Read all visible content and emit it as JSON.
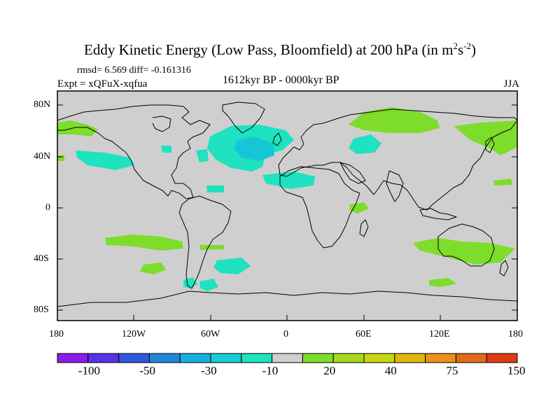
{
  "title_main": "Eddy Kinetic Energy (Low Pass, Bloomfield) at 200 hPa (in m",
  "title_sup1": "2",
  "title_mid": "s",
  "title_sup2": "-2",
  "title_end": ")",
  "stats": "rmsd= 6.569 diff= -0.161316",
  "expt": "Expt = xQFuX-xqfua",
  "period": "1612kyr BP - 0000kyr BP",
  "season": "JJA",
  "lat_labels": [
    "80N",
    "40N",
    "0",
    "40S",
    "80S"
  ],
  "lon_labels": [
    "180",
    "120W",
    "60W",
    "0",
    "60E",
    "120E",
    "180"
  ],
  "colorbar": {
    "colors": [
      "#8a1ee8",
      "#5a32e6",
      "#2f58e0",
      "#1f86dc",
      "#16aee0",
      "#17ccd8",
      "#1ee2c0",
      "#cfcfcf",
      "#7edc2a",
      "#a6d81c",
      "#c8d414",
      "#e0b610",
      "#e8921a",
      "#e06a18",
      "#e03c14"
    ],
    "labels": [
      "-100",
      "-50",
      "-30",
      "-10",
      "20",
      "40",
      "75",
      "150"
    ]
  },
  "colors": {
    "ocean": "#cfcfcf",
    "positive": "#7edc2a",
    "negative": "#1ee2c0",
    "strong_negative": "#17c6d6"
  }
}
